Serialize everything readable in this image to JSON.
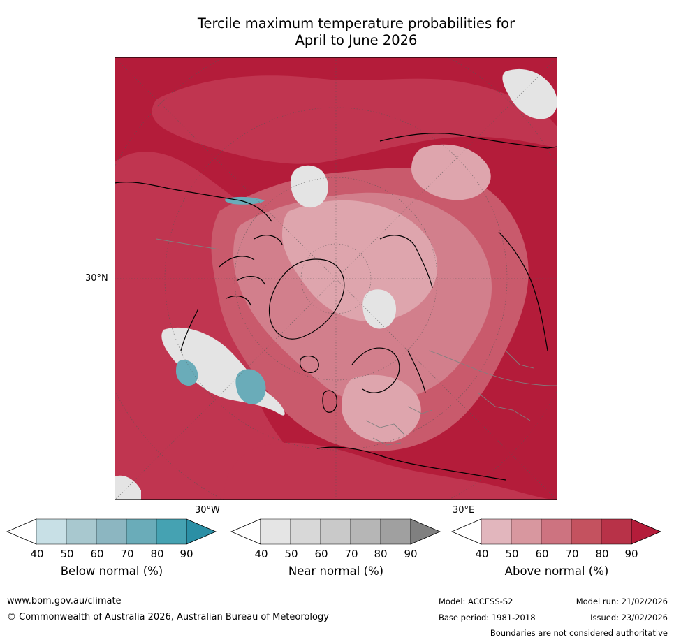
{
  "title": {
    "line1": "Tercile maximum temperature probabilities for",
    "line2": "April to June 2026"
  },
  "map": {
    "projection": "north-polar-stereographic",
    "labels": {
      "lat_30n": "30°N",
      "lon_30w": "30°W",
      "lon_30e": "30°E"
    },
    "colors": {
      "above_90": "#b41c3a",
      "above_80": "#c03550",
      "above_70": "#c95a6c",
      "above_60": "#d27f8c",
      "above_50": "#dea5ad",
      "near_40": "#e4e4e4",
      "below_70": "#6aacb9",
      "coast": "#000000",
      "border": "#808080"
    }
  },
  "legend": {
    "ticks": [
      "40",
      "50",
      "60",
      "70",
      "80",
      "90"
    ],
    "below": {
      "label": "Below normal (%)",
      "colors": [
        "#c8e0e6",
        "#a8c8cf",
        "#8cb6c1",
        "#6aacb9",
        "#45a2b2",
        "#2b8fa5"
      ]
    },
    "near": {
      "label": "Near normal (%)",
      "colors": [
        "#e5e5e5",
        "#d8d8d8",
        "#c9c9c9",
        "#b6b6b6",
        "#a0a0a0",
        "#808080"
      ]
    },
    "above": {
      "label": "Above normal (%)",
      "colors": [
        "#e2b6bd",
        "#d8979f",
        "#cd7380",
        "#c4525f",
        "#b83248",
        "#b41c3a"
      ]
    }
  },
  "footer": {
    "url": "www.bom.gov.au/climate",
    "copyright": "© Commonwealth of Australia 2026, Australian Bureau of Meteorology",
    "model": "Model: ACCESS-S2",
    "base_period": "Base period: 1981-2018",
    "model_run": "Model run: 21/02/2026",
    "issued": "Issued: 23/02/2026",
    "disclaimer": "Boundaries are not considered authoritative"
  }
}
